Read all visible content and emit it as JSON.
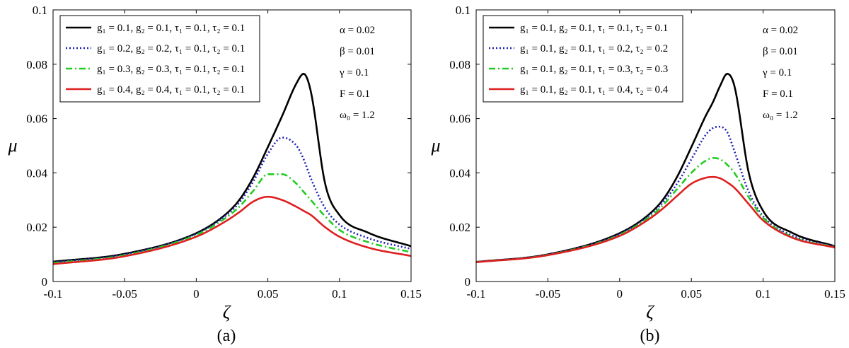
{
  "chart_data": [
    {
      "type": "line",
      "caption": "(a)",
      "xlabel": "ζ",
      "ylabel": "μ",
      "xlim": [
        -0.1,
        0.15
      ],
      "ylim": [
        0,
        0.1
      ],
      "xticks": [
        "-0.1",
        "-0.05",
        "0",
        "0.05",
        "0.1",
        "0.15"
      ],
      "yticks": [
        "0",
        "0.02",
        "0.04",
        "0.06",
        "0.08",
        "0.1"
      ],
      "legend_position": "top-left",
      "grid": false,
      "params": [
        "α = 0.02",
        "β = 0.01",
        "γ = 0.1",
        "F = 0.1",
        "ω₀ = 1.2"
      ],
      "x": [
        -0.1,
        -0.05,
        0,
        0.02,
        0.03,
        0.04,
        0.05,
        0.06,
        0.07,
        0.075,
        0.08,
        0.09,
        0.1,
        0.12,
        0.15
      ],
      "series": [
        {
          "name": "g₁ = 0.1, g₂ = 0.1, τ₁ = 0.1, τ₂ = 0.1",
          "color": "#000000",
          "dash": "solid",
          "values": [
            0.0073,
            0.0102,
            0.0178,
            0.0245,
            0.03,
            0.0385,
            0.0495,
            0.061,
            0.073,
            0.0765,
            0.07,
            0.036,
            0.0245,
            0.018,
            0.013
          ]
        },
        {
          "name": "g₁ = 0.2, g₂ = 0.2, τ₁ = 0.1, τ₂ = 0.1",
          "color": "#1f1fb4",
          "dash": "dotted",
          "values": [
            0.0071,
            0.01,
            0.0176,
            0.024,
            0.029,
            0.037,
            0.047,
            0.053,
            0.05,
            0.045,
            0.038,
            0.027,
            0.021,
            0.016,
            0.012
          ]
        },
        {
          "name": "g₁ = 0.3, g₂ = 0.3, τ₁ = 0.1, τ₂ = 0.1",
          "color": "#22cc22",
          "dash": "dashdot",
          "values": [
            0.0068,
            0.0097,
            0.0172,
            0.0232,
            0.0275,
            0.0335,
            0.0395,
            0.0395,
            0.036,
            0.033,
            0.03,
            0.024,
            0.019,
            0.0145,
            0.0108
          ]
        },
        {
          "name": "g₁ = 0.4, g₂ = 0.4, τ₁ = 0.1, τ₂ = 0.1",
          "color": "#dd2020",
          "dash": "solid",
          "values": [
            0.0064,
            0.0093,
            0.0165,
            0.022,
            0.0255,
            0.0295,
            0.0312,
            0.03,
            0.0275,
            0.026,
            0.0245,
            0.02,
            0.0165,
            0.0125,
            0.0094
          ]
        }
      ]
    },
    {
      "type": "line",
      "caption": "(b)",
      "xlabel": "ζ",
      "ylabel": "μ",
      "xlim": [
        -0.1,
        0.15
      ],
      "ylim": [
        0,
        0.1
      ],
      "xticks": [
        "-0.1",
        "-0.05",
        "0",
        "0.05",
        "0.1",
        "0.15"
      ],
      "yticks": [
        "0",
        "0.02",
        "0.04",
        "0.06",
        "0.08",
        "0.1"
      ],
      "legend_position": "top-left",
      "grid": false,
      "params": [
        "α = 0.02",
        "β = 0.01",
        "γ = 0.1",
        "F = 0.1",
        "ω₀ = 1.2"
      ],
      "x": [
        -0.1,
        -0.05,
        0,
        0.02,
        0.03,
        0.04,
        0.05,
        0.06,
        0.065,
        0.07,
        0.075,
        0.08,
        0.09,
        0.1,
        0.12,
        0.15
      ],
      "series": [
        {
          "name": "g₁ = 0.1, g₂ = 0.1, τ₁ = 0.1, τ₂ = 0.1",
          "color": "#000000",
          "dash": "solid",
          "values": [
            0.0072,
            0.01,
            0.0178,
            0.0245,
            0.03,
            0.0385,
            0.0495,
            0.061,
            0.066,
            0.072,
            0.0765,
            0.072,
            0.04,
            0.026,
            0.018,
            0.013
          ]
        },
        {
          "name": "g₁ = 0.1, g₂ = 0.1, τ₁ = 0.2, τ₂ = 0.2",
          "color": "#1f1fb4",
          "dash": "dotted",
          "values": [
            0.0072,
            0.0099,
            0.0175,
            0.024,
            0.029,
            0.036,
            0.045,
            0.054,
            0.0565,
            0.057,
            0.055,
            0.048,
            0.033,
            0.024,
            0.017,
            0.0128
          ]
        },
        {
          "name": "g₁ = 0.1, g₂ = 0.1, τ₁ = 0.3, τ₂ = 0.3",
          "color": "#22cc22",
          "dash": "dashdot",
          "values": [
            0.0071,
            0.0098,
            0.0172,
            0.0235,
            0.028,
            0.034,
            0.04,
            0.0445,
            0.0455,
            0.045,
            0.043,
            0.04,
            0.031,
            0.0235,
            0.0165,
            0.0127
          ]
        },
        {
          "name": "g₁ = 0.1, g₂ = 0.1, τ₁ = 0.4, τ₂ = 0.4",
          "color": "#dd2020",
          "dash": "solid",
          "values": [
            0.0071,
            0.0097,
            0.0168,
            0.0228,
            0.0268,
            0.0315,
            0.036,
            0.0382,
            0.0385,
            0.038,
            0.0365,
            0.0345,
            0.0285,
            0.0225,
            0.0162,
            0.0125
          ]
        }
      ]
    }
  ]
}
